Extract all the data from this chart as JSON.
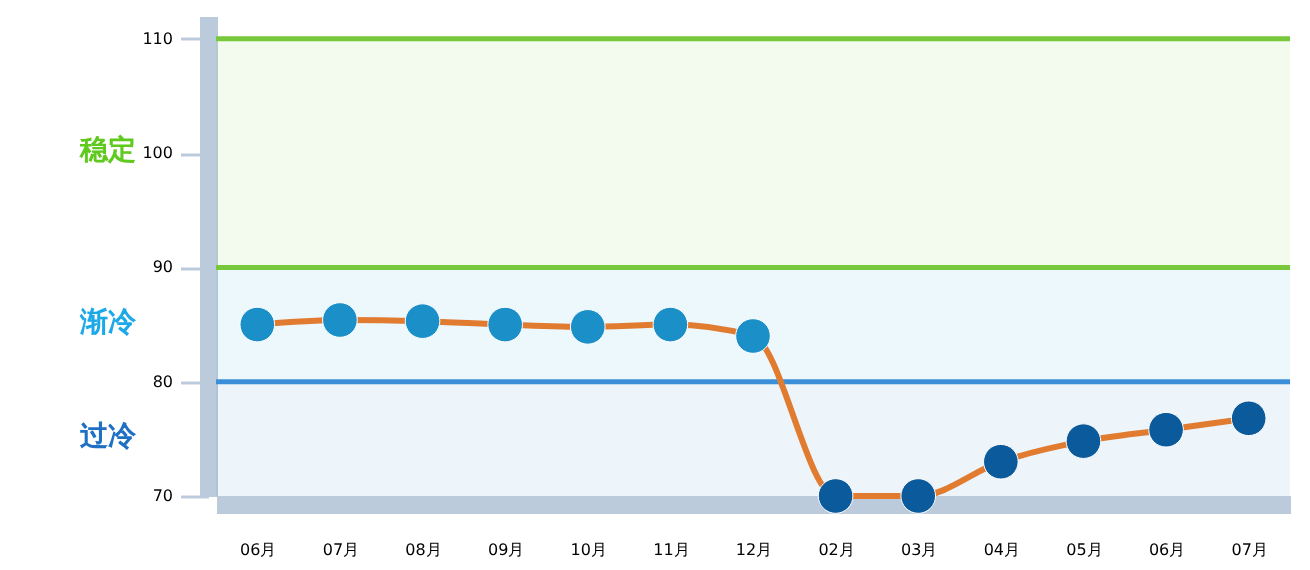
{
  "chart_data": {
    "type": "line",
    "categories": [
      "06月",
      "07月",
      "08月",
      "09月",
      "10月",
      "11月",
      "12月",
      "02月",
      "03月",
      "04月",
      "05月",
      "06月",
      "07月"
    ],
    "series": [
      {
        "color": "#e07b30",
        "colors": [
          "#1a8fc8",
          "#1a8fc8",
          "#1a8fc8",
          "#1a8fc8",
          "#1a8fc8",
          "#1a8fc8",
          "#1a8fc8",
          "#0b5a9c",
          "#0b5a9c",
          "#0b5a9c",
          "#0b5a9c",
          "#0b5a9c",
          "#0b5a9c"
        ],
        "values": [
          85,
          85.4,
          85.3,
          85,
          84.8,
          85,
          84,
          70,
          70,
          73,
          74.8,
          75.8,
          76.8
        ]
      }
    ],
    "ylim": [
      70,
      112
    ],
    "yticks": [
      70,
      80,
      90,
      100,
      110
    ],
    "marker": "circle",
    "line_style": "solid",
    "grid": false,
    "ref_lines": [
      {
        "axis": "y",
        "value": 110,
        "color": "#77c83a"
      },
      {
        "axis": "y",
        "value": 90,
        "color": "#77c83a"
      },
      {
        "axis": "y",
        "value": 80,
        "color": "#3b8fd9"
      }
    ],
    "bands": [
      {
        "axis": "y",
        "from": 90,
        "to": 110,
        "label": "稳定",
        "color": "#5fc91e"
      },
      {
        "axis": "y",
        "from": 80,
        "to": 90,
        "label": "渐冷",
        "color": "#1ba9e8"
      },
      {
        "axis": "y",
        "from": 70,
        "to": 80,
        "label": "过冷",
        "color": "#1f6fc4"
      }
    ]
  }
}
